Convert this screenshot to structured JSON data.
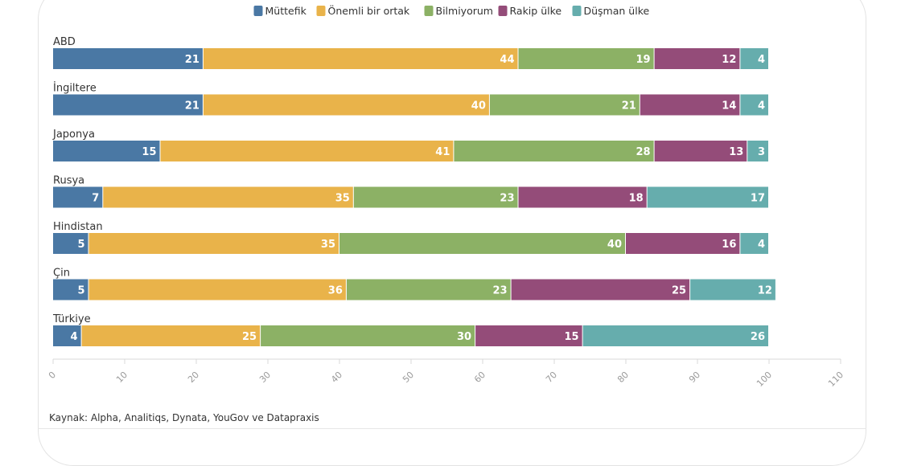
{
  "chart_data": {
    "type": "bar",
    "orientation": "horizontal",
    "stacked": true,
    "categories": [
      "ABD",
      "İngiltere",
      "Japonya",
      "Rusya",
      "Hindistan",
      "Çin",
      "Türkiye"
    ],
    "series": [
      {
        "name": "Müttefik",
        "color": "#4a78a4",
        "values": [
          21,
          21,
          15,
          7,
          5,
          5,
          4
        ]
      },
      {
        "name": "Önemli bir ortak",
        "color": "#e9b34a",
        "values": [
          44,
          40,
          41,
          35,
          35,
          36,
          25
        ]
      },
      {
        "name": "Bilmiyorum",
        "color": "#8cb165",
        "values": [
          19,
          21,
          28,
          23,
          40,
          23,
          30
        ]
      },
      {
        "name": "Rakip ülke",
        "color": "#944c79",
        "values": [
          12,
          14,
          13,
          18,
          16,
          25,
          15
        ]
      },
      {
        "name": "Düşman ülke",
        "color": "#66adad",
        "values": [
          4,
          4,
          3,
          17,
          4,
          12,
          26
        ]
      }
    ],
    "xlim": [
      0,
      110
    ],
    "xticks": [
      0,
      10,
      20,
      30,
      40,
      50,
      60,
      70,
      80,
      90,
      100,
      110
    ],
    "legend_position": "top",
    "grid": false
  },
  "source": "Kaynak: Alpha, Analitiqs, Dynata, YouGov ve Datapraxis"
}
